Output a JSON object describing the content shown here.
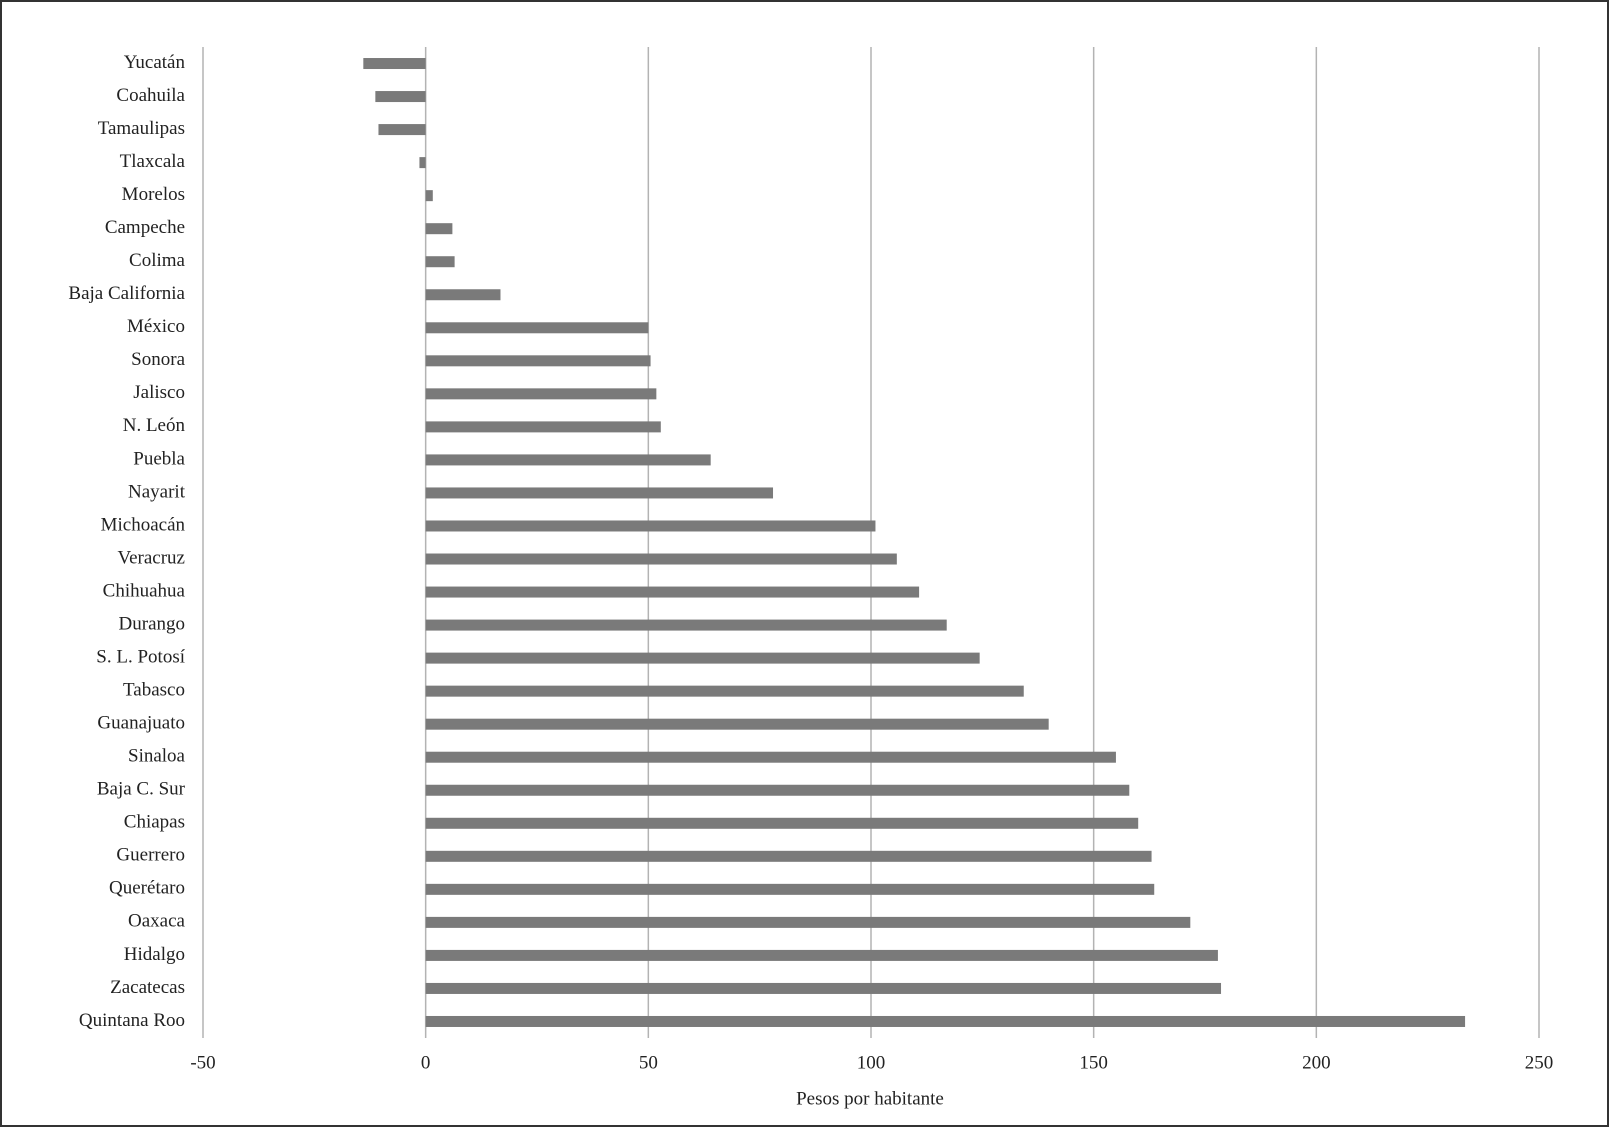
{
  "chart_data": {
    "type": "hbar",
    "x_label": "Pesos por habitante",
    "categories": [
      "Yucatán",
      "Coahuila",
      "Tamaulipas",
      "Tlaxcala",
      "Morelos",
      "Campeche",
      "Colima",
      "Baja California",
      "México",
      "Sonora",
      "Jalisco",
      "N. León",
      "Puebla",
      "Nayarit",
      "Michoacán",
      "Veracruz",
      "Chihuahua",
      "Durango",
      "S. L. Potosí",
      "Tabasco",
      "Guanajuato",
      "Sinaloa",
      "Baja C. Sur",
      "Chiapas",
      "Guerrero",
      "Querétaro",
      "Oaxaca",
      "Hidalgo",
      "Zacatecas",
      "Quintana Roo"
    ],
    "values": [
      -14,
      -11.3,
      -10.6,
      -1.4,
      1.6,
      6,
      6.5,
      16.8,
      50,
      50.5,
      51.8,
      52.8,
      64,
      78,
      101,
      105.8,
      110.8,
      117,
      124.4,
      134.3,
      139.9,
      155,
      158,
      160,
      163,
      163.6,
      171.7,
      177.9,
      178.6,
      233.4
    ],
    "color": "#7a7a7a",
    "xlim": [
      -50,
      250
    ],
    "xticks": [
      -50,
      0,
      50,
      100,
      150,
      200,
      250
    ],
    "grid": true
  }
}
